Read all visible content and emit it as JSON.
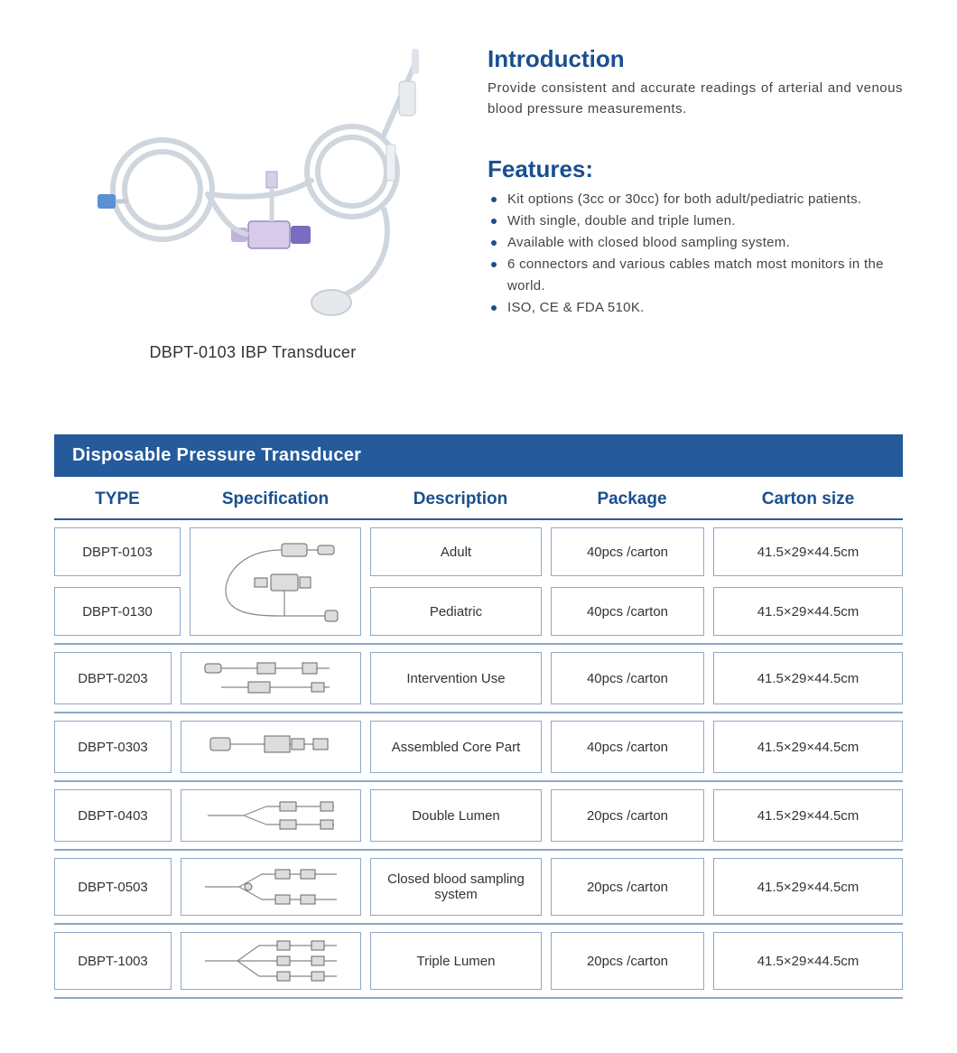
{
  "colors": {
    "brand_blue": "#1a4f8f",
    "header_blue": "#255a9b",
    "border_blue": "#2d5a95",
    "row_border": "#8ea8c8",
    "bullet": "#1a4f8f",
    "text": "#333333",
    "muted": "#555555"
  },
  "product": {
    "caption": "DBPT-0103 IBP Transducer"
  },
  "intro": {
    "heading": "Introduction",
    "text": "Provide consistent and accurate readings of arterial and venous blood pressure measurements."
  },
  "features": {
    "heading": "Features:",
    "items": [
      "Kit options (3cc or 30cc) for both adult/pediatric patients.",
      "With single, double and triple lumen.",
      "Available with closed blood sampling system.",
      "6 connectors and various cables match most monitors in the world.",
      "ISO, CE & FDA 510K."
    ]
  },
  "table": {
    "title": "Disposable Pressure Transducer",
    "columns": {
      "type": "TYPE",
      "spec": "Specification",
      "desc": "Description",
      "pkg": "Package",
      "size": "Carton  size"
    },
    "group": {
      "types": [
        "DBPT-0103",
        "DBPT-0130"
      ],
      "rows": [
        {
          "desc": "Adult",
          "pkg": "40pcs /carton",
          "size": "41.5×29×44.5cm"
        },
        {
          "desc": "Pediatric",
          "pkg": "40pcs /carton",
          "size": "41.5×29×44.5cm"
        }
      ]
    },
    "rows": [
      {
        "type": "DBPT-0203",
        "desc": "Intervention Use",
        "pkg": "40pcs /carton",
        "size": "41.5×29×44.5cm"
      },
      {
        "type": "DBPT-0303",
        "desc": "Assembled Core Part",
        "pkg": "40pcs /carton",
        "size": "41.5×29×44.5cm"
      },
      {
        "type": "DBPT-0403",
        "desc": "Double Lumen",
        "pkg": "20pcs /carton",
        "size": "41.5×29×44.5cm"
      },
      {
        "type": "DBPT-0503",
        "desc": "Closed blood sampling system",
        "pkg": "20pcs /carton",
        "size": "41.5×29×44.5cm"
      },
      {
        "type": "DBPT-1003",
        "desc": "Triple Lumen",
        "pkg": "20pcs /carton",
        "size": "41.5×29×44.5cm"
      }
    ]
  }
}
